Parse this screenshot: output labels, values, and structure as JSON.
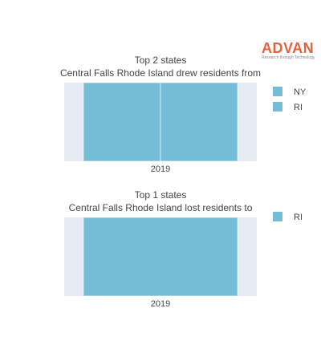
{
  "logo": {
    "word": "ADVAN",
    "tagline": "Research through Technology",
    "color": "#e8603a"
  },
  "colors": {
    "plot_bg": "#e5ecf6",
    "bar": "#75bdd6"
  },
  "chart_data": [
    {
      "type": "bar",
      "barmode": "stack",
      "title": "Top 2 states",
      "subtitle": "Central Falls Rhode Island drew residents from",
      "categories": [
        "2019"
      ],
      "series": [
        {
          "name": "NY",
          "values": [
            1
          ]
        },
        {
          "name": "RI",
          "values": [
            1
          ]
        }
      ],
      "ylim": [
        0,
        2
      ],
      "legend_position": "right",
      "grid": false
    },
    {
      "type": "bar",
      "barmode": "stack",
      "title": "Top 1 states",
      "subtitle": "Central Falls Rhode Island lost residents to",
      "categories": [
        "2019"
      ],
      "series": [
        {
          "name": "RI",
          "values": [
            1
          ]
        }
      ],
      "ylim": [
        0,
        1
      ],
      "legend_position": "right",
      "grid": false
    }
  ]
}
